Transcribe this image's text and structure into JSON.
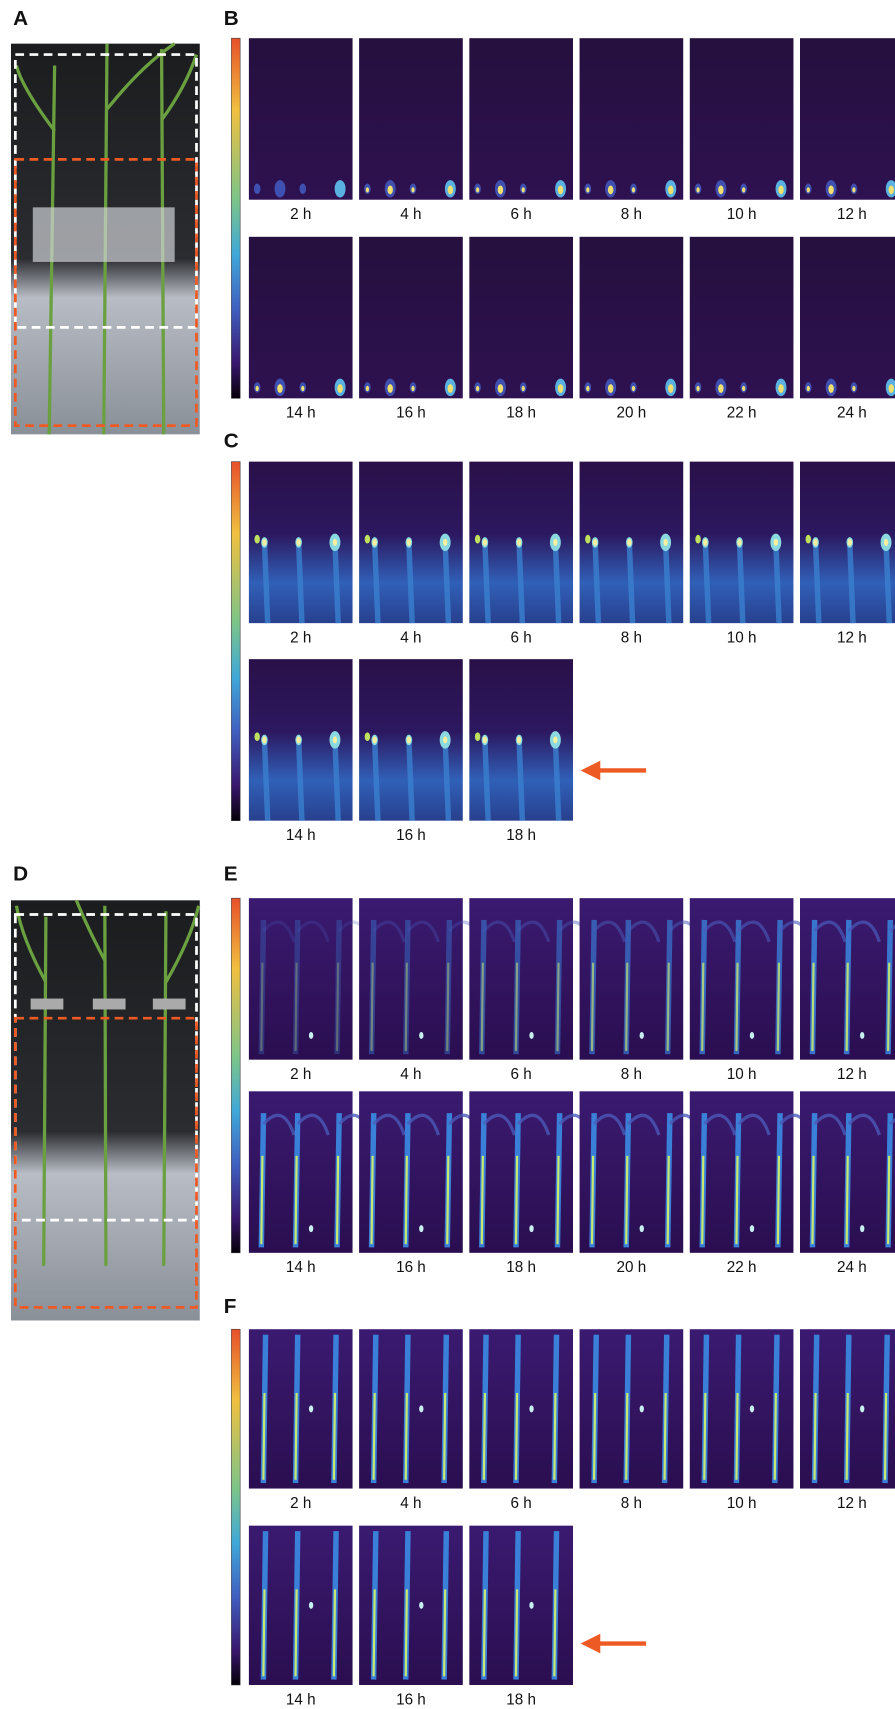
{
  "panels": [
    {
      "label": "A"
    },
    {
      "label": "B",
      "times": [
        "2 h",
        "4 h",
        "6 h",
        "8 h",
        "10 h",
        "12 h",
        "14 h",
        "16 h",
        "18 h",
        "20 h",
        "22 h",
        "24 h"
      ]
    },
    {
      "label": "C",
      "times": [
        "2 h",
        "4 h",
        "6 h",
        "8 h",
        "10 h",
        "12 h",
        "14 h",
        "16 h",
        "18 h"
      ]
    },
    {
      "label": "D"
    },
    {
      "label": "E",
      "times": [
        "2 h",
        "4 h",
        "6 h",
        "8 h",
        "10 h",
        "12 h",
        "14 h",
        "16 h",
        "18 h",
        "20 h",
        "22 h",
        "24 h"
      ]
    },
    {
      "label": "F",
      "times": [
        "2 h",
        "4 h",
        "6 h",
        "8 h",
        "10 h",
        "12 h",
        "14 h",
        "16 h",
        "18 h"
      ]
    }
  ]
}
